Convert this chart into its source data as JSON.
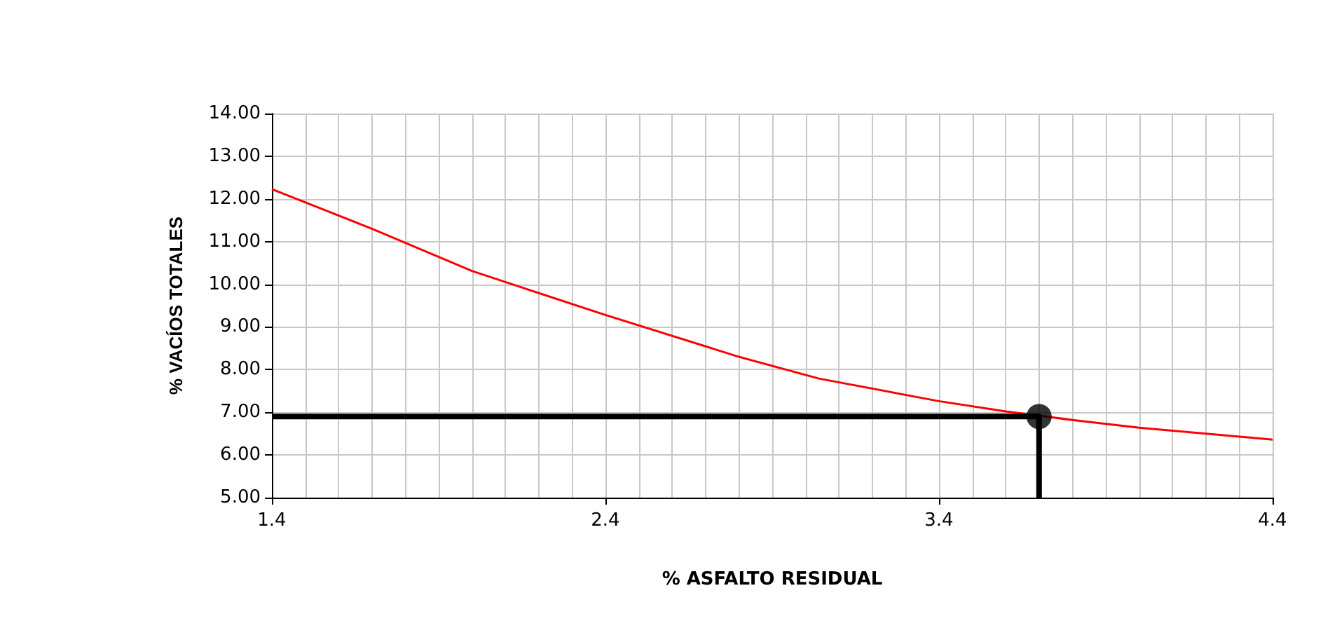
{
  "chart_data": {
    "type": "line",
    "xlabel": "% ASFALTO RESIDUAL",
    "ylabel": "% VACÍOS TOTALES",
    "xlim": [
      1.4,
      4.4
    ],
    "xticks": [
      1.4,
      2.4,
      3.4,
      4.4
    ],
    "ylim": [
      5,
      14
    ],
    "yticks": [
      {
        "value": 5,
        "label": "5.00"
      },
      {
        "value": 6,
        "label": "6.00"
      },
      {
        "value": 7,
        "label": "7.00"
      },
      {
        "value": 8,
        "label": "8.00"
      },
      {
        "value": 9,
        "label": "9.00"
      },
      {
        "value": 10,
        "label": "10.00"
      },
      {
        "value": 11,
        "label": "11.00"
      },
      {
        "value": 12,
        "label": "12.00"
      },
      {
        "value": 13,
        "label": "13.00"
      },
      {
        "value": 14,
        "label": "14.00"
      }
    ],
    "grid": true,
    "series": [
      {
        "color": "#ff0000",
        "marker": "none",
        "x": [
          1.4,
          1.7,
          2.0,
          2.4,
          2.8,
          3.04,
          3.4,
          3.6,
          3.8,
          4.0,
          4.4
        ],
        "values": [
          12.23,
          11.3,
          10.31,
          9.28,
          8.3,
          7.79,
          7.26,
          7.02,
          6.82,
          6.64,
          6.36
        ]
      },
      {
        "color": "#000000",
        "marker": "none",
        "x": [
          1.4,
          3.7,
          3.7
        ],
        "values": [
          6.9,
          6.9,
          5
        ]
      },
      {
        "type": "scatter",
        "color": "#000000",
        "marker": "circle",
        "x": [
          3.7
        ],
        "values": [
          6.9
        ]
      }
    ]
  }
}
